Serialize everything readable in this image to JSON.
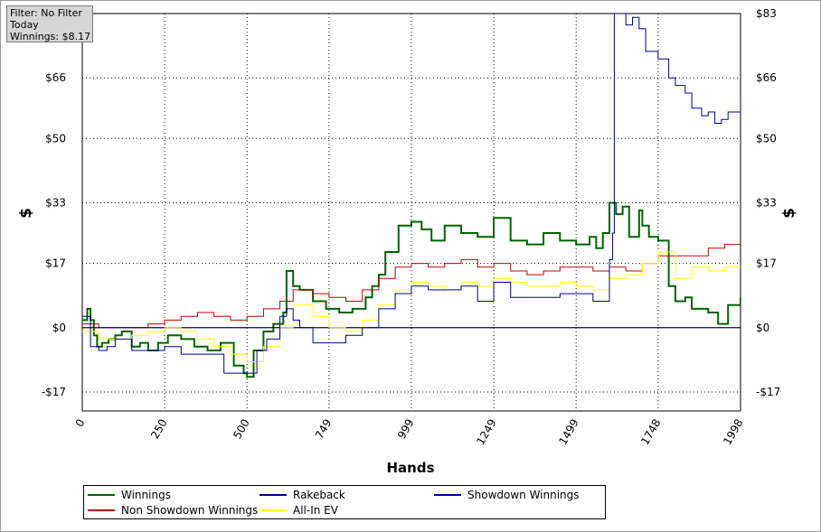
{
  "info_box": {
    "filter": "Filter: No Filter",
    "period": "Today",
    "winnings": "Winnings: $8.17"
  },
  "chart_data": {
    "type": "line",
    "xlabel": "Hands",
    "ylabel": "$",
    "xlim": [
      0,
      1998
    ],
    "ylim": [
      -22,
      83
    ],
    "x_ticks": [
      0,
      250,
      500,
      749,
      999,
      1249,
      1499,
      1748,
      1998
    ],
    "x_tick_labels": [
      "0",
      "250",
      "500",
      "749",
      "999",
      "1249",
      "1499",
      "1748",
      "1998"
    ],
    "y_ticks": [
      -17,
      0,
      17,
      33,
      50,
      66,
      83
    ],
    "y_tick_labels": [
      "-$17",
      "$0",
      "$17",
      "$33",
      "$50",
      "$66",
      "$83"
    ],
    "grid": true,
    "legend_position": "bottom",
    "series": [
      {
        "name": "Winnings",
        "color": "#006400",
        "width": 2,
        "x": [
          0,
          15,
          25,
          35,
          45,
          60,
          80,
          100,
          120,
          150,
          175,
          200,
          230,
          260,
          300,
          340,
          380,
          420,
          460,
          490,
          500,
          520,
          550,
          580,
          610,
          620,
          640,
          660,
          700,
          740,
          780,
          820,
          860,
          880,
          900,
          920,
          960,
          999,
          1030,
          1060,
          1100,
          1150,
          1200,
          1249,
          1300,
          1350,
          1400,
          1450,
          1499,
          1540,
          1560,
          1580,
          1600,
          1620,
          1640,
          1660,
          1690,
          1700,
          1720,
          1748,
          1780,
          1800,
          1830,
          1850,
          1880,
          1900,
          1930,
          1960,
          1998
        ],
        "y": [
          2,
          5,
          2,
          -2,
          -5,
          -4,
          -3,
          -2,
          -1,
          -5,
          -4,
          -6,
          -4,
          -2,
          -3,
          -5,
          -6,
          -4,
          -10,
          -12,
          -13,
          -6,
          -1,
          1,
          4,
          15,
          11,
          10,
          7,
          5,
          4,
          5,
          8,
          11,
          14,
          20,
          27,
          28,
          26,
          23,
          27,
          25,
          24,
          29,
          23,
          22,
          25,
          23,
          22,
          24,
          21,
          25,
          33,
          30,
          32,
          24,
          31,
          27,
          24,
          23,
          11,
          7,
          8,
          5,
          5,
          4,
          1,
          6,
          8
        ]
      },
      {
        "name": "Non Showdown Winnings",
        "color": "#c00000",
        "width": 1,
        "x": [
          0,
          50,
          100,
          150,
          200,
          250,
          300,
          350,
          400,
          450,
          500,
          550,
          600,
          640,
          700,
          749,
          800,
          850,
          900,
          950,
          999,
          1050,
          1100,
          1150,
          1200,
          1249,
          1300,
          1350,
          1400,
          1450,
          1499,
          1550,
          1600,
          1650,
          1700,
          1748,
          1800,
          1850,
          1900,
          1950,
          1998
        ],
        "y": [
          1,
          0,
          0,
          0,
          1,
          2,
          3,
          4,
          3,
          2,
          3,
          5,
          7,
          10,
          9,
          8,
          7,
          10,
          13,
          16,
          17,
          16,
          17,
          18,
          16,
          17,
          15,
          14,
          15,
          16,
          16,
          15,
          16,
          15,
          17,
          19,
          19,
          19,
          21,
          22,
          22
        ]
      },
      {
        "name": "Rakeback",
        "color": "#000080",
        "width": 1,
        "x": [
          0,
          1998
        ],
        "y": [
          0,
          0
        ]
      },
      {
        "name": "All-In EV",
        "color": "#ffff00",
        "width": 1,
        "x": [
          0,
          50,
          100,
          150,
          200,
          250,
          300,
          350,
          400,
          450,
          500,
          550,
          600,
          640,
          700,
          749,
          800,
          850,
          900,
          950,
          999,
          1050,
          1100,
          1150,
          1200,
          1249,
          1300,
          1350,
          1400,
          1450,
          1499,
          1550,
          1600,
          1650,
          1700,
          1748,
          1800,
          1850,
          1900,
          1950,
          1998
        ],
        "y": [
          -1,
          -3,
          -3,
          -2,
          -1,
          0,
          -1,
          -3,
          -5,
          -7,
          -9,
          -5,
          0,
          6,
          3,
          0,
          -1,
          2,
          6,
          10,
          12,
          11,
          10,
          12,
          11,
          13,
          12,
          11,
          11,
          12,
          11,
          10,
          13,
          14,
          17,
          20,
          13,
          16,
          15,
          16,
          16
        ]
      },
      {
        "name": "Showdown Winnings",
        "color": "#000090",
        "width": 1,
        "x": [
          0,
          25,
          50,
          75,
          100,
          150,
          200,
          250,
          300,
          350,
          400,
          430,
          460,
          500,
          530,
          560,
          600,
          620,
          640,
          660,
          700,
          749,
          800,
          850,
          900,
          950,
          999,
          1050,
          1100,
          1150,
          1200,
          1249,
          1300,
          1350,
          1400,
          1450,
          1499,
          1550,
          1600,
          1610,
          1615,
          1625,
          1650,
          1670,
          1690,
          1710,
          1730,
          1748,
          1780,
          1800,
          1830,
          1850,
          1880,
          1900,
          1920,
          1940,
          1960,
          1998
        ],
        "y": [
          3,
          -5,
          -6,
          -5,
          -3,
          -6,
          -6,
          -5,
          -7,
          -7,
          -7,
          -12,
          -12,
          -12,
          -6,
          -3,
          3,
          5,
          2,
          0,
          -4,
          -4,
          -2,
          0,
          5,
          9,
          11,
          10,
          10,
          11,
          7,
          12,
          8,
          8,
          8,
          9,
          9,
          7,
          18,
          25,
          83,
          83,
          80,
          82,
          79,
          73,
          73,
          71,
          66,
          64,
          62,
          58,
          56,
          57,
          54,
          55,
          57,
          60
        ]
      }
    ]
  },
  "legend": {
    "items": [
      {
        "label": "Winnings",
        "color": "#006400"
      },
      {
        "label": "Rakeback",
        "color": "#000080"
      },
      {
        "label": "Showdown Winnings",
        "color": "#000090"
      },
      {
        "label": "Non Showdown Winnings",
        "color": "#c00000"
      },
      {
        "label": "All-In EV",
        "color": "#ffff00"
      }
    ]
  }
}
